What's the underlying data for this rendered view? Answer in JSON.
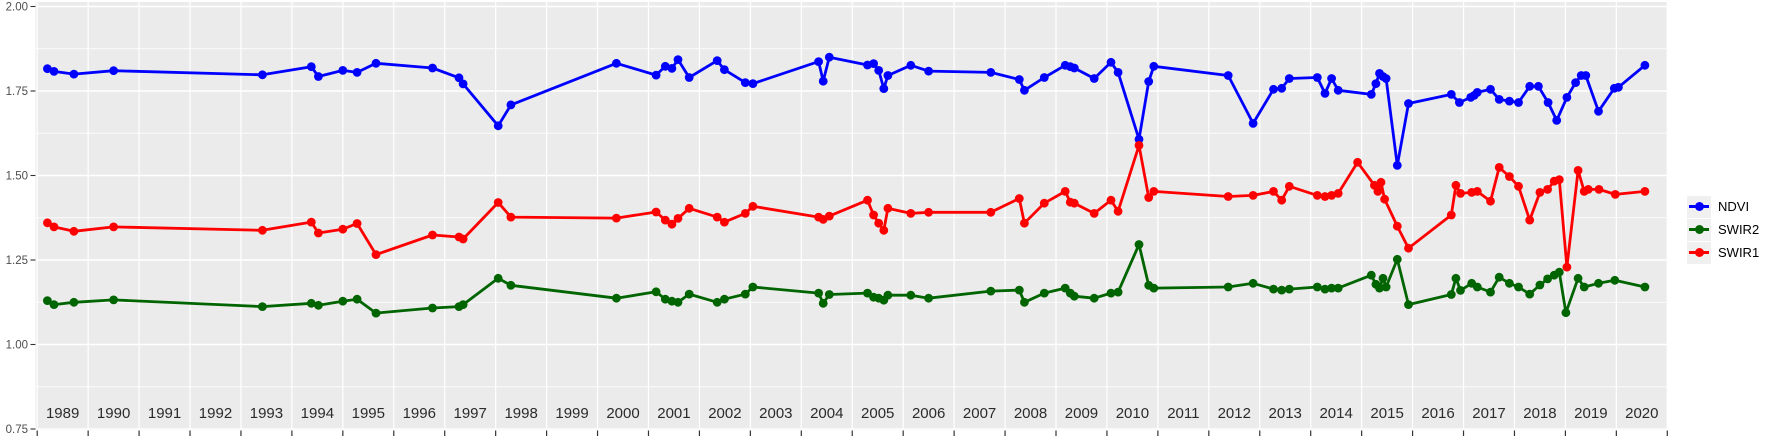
{
  "figure": {
    "background": "#ffffff",
    "panel_fill": "#ebebeb",
    "grid_color": "#ffffff",
    "tick_color": "#333333",
    "x_label_color": "#2b2b2b",
    "y_label_color": "#4d4d4d"
  },
  "legend": {
    "position": "right",
    "key_fill": "#f0f0f0",
    "items": [
      {
        "label": "NDVI",
        "color": "#0000ff"
      },
      {
        "label": "SWIR2",
        "color": "#006400"
      },
      {
        "label": "SWIR1",
        "color": "#ff0000"
      }
    ]
  },
  "chart_data": {
    "type": "line",
    "title": "",
    "xlabel": "",
    "ylabel": "",
    "grid": true,
    "legend_position": "right",
    "x_unit": "decimal year",
    "xlim": [
      1989,
      2021
    ],
    "ylim": [
      0.75,
      2.0
    ],
    "y_ticks": [
      0.75,
      1.0,
      1.25,
      1.5,
      1.75,
      2.0
    ],
    "y_tick_labels": [
      "0.75",
      "1.00",
      "1.25",
      "1.50",
      "1.75",
      "2.00"
    ],
    "y_minor_ticks": [
      0.875,
      1.125,
      1.375,
      1.625,
      1.875
    ],
    "x_tick_labels": [
      "1989",
      "1990",
      "1991",
      "1992",
      "1993",
      "1994",
      "1995",
      "1996",
      "1997",
      "1998",
      "1999",
      "2000",
      "2001",
      "2002",
      "2003",
      "2004",
      "2005",
      "2006",
      "2007",
      "2008",
      "2009",
      "2010",
      "2011",
      "2012",
      "2015",
      "2016",
      "2017",
      "2018",
      "2019",
      "2020"
    ],
    "x_tick_labels_full": [
      "1989",
      "1990",
      "1991",
      "1992",
      "1993",
      "1994",
      "1995",
      "1996",
      "1997",
      "1998",
      "1999",
      "2000",
      "2001",
      "2002",
      "2003",
      "2004",
      "2005",
      "2006",
      "2007",
      "2008",
      "2009",
      "2010",
      "2011",
      "2012",
      "2013",
      "2014",
      "2015",
      "2016",
      "2017",
      "2018",
      "2019",
      "2020"
    ],
    "series": [
      {
        "name": "NDVI",
        "color": "#0000ff",
        "points": [
          [
            1989.2,
            1.816
          ],
          [
            1989.33,
            1.808
          ],
          [
            1989.72,
            1.8
          ],
          [
            1990.5,
            1.81
          ],
          [
            1993.42,
            1.798
          ],
          [
            1994.38,
            1.822
          ],
          [
            1994.52,
            1.793
          ],
          [
            1995.0,
            1.811
          ],
          [
            1995.28,
            1.805
          ],
          [
            1995.65,
            1.832
          ],
          [
            1996.76,
            1.818
          ],
          [
            1997.28,
            1.789
          ],
          [
            1997.36,
            1.771
          ],
          [
            1998.05,
            1.647
          ],
          [
            1998.3,
            1.709
          ],
          [
            2000.37,
            1.832
          ],
          [
            2001.15,
            1.797
          ],
          [
            2001.33,
            1.823
          ],
          [
            2001.46,
            1.817
          ],
          [
            2001.58,
            1.843
          ],
          [
            2001.8,
            1.79
          ],
          [
            2002.35,
            1.84
          ],
          [
            2002.49,
            1.813
          ],
          [
            2002.9,
            1.775
          ],
          [
            2003.05,
            1.772
          ],
          [
            2004.34,
            1.837
          ],
          [
            2004.43,
            1.779
          ],
          [
            2004.55,
            1.85
          ],
          [
            2005.3,
            1.827
          ],
          [
            2005.42,
            1.831
          ],
          [
            2005.52,
            1.811
          ],
          [
            2005.62,
            1.757
          ],
          [
            2005.7,
            1.796
          ],
          [
            2006.15,
            1.826
          ],
          [
            2006.5,
            1.809
          ],
          [
            2007.72,
            1.805
          ],
          [
            2008.28,
            1.784
          ],
          [
            2008.38,
            1.752
          ],
          [
            2008.77,
            1.79
          ],
          [
            2009.18,
            1.826
          ],
          [
            2009.28,
            1.822
          ],
          [
            2009.36,
            1.818
          ],
          [
            2009.75,
            1.787
          ],
          [
            2010.08,
            1.835
          ],
          [
            2010.22,
            1.805
          ],
          [
            2010.63,
            1.607
          ],
          [
            2010.82,
            1.778
          ],
          [
            2010.92,
            1.823
          ],
          [
            2012.38,
            1.796
          ],
          [
            2012.87,
            1.654
          ],
          [
            2013.27,
            1.755
          ],
          [
            2013.43,
            1.758
          ],
          [
            2013.58,
            1.787
          ],
          [
            2014.13,
            1.79
          ],
          [
            2014.28,
            1.743
          ],
          [
            2014.41,
            1.787
          ],
          [
            2014.54,
            1.752
          ],
          [
            2015.19,
            1.74
          ],
          [
            2015.28,
            1.772
          ],
          [
            2015.35,
            1.802
          ],
          [
            2015.42,
            1.793
          ],
          [
            2015.48,
            1.787
          ],
          [
            2015.7,
            1.53
          ],
          [
            2015.92,
            1.713
          ],
          [
            2016.76,
            1.74
          ],
          [
            2016.92,
            1.716
          ],
          [
            2017.14,
            1.731
          ],
          [
            2017.21,
            1.737
          ],
          [
            2017.27,
            1.746
          ],
          [
            2017.53,
            1.755
          ],
          [
            2017.7,
            1.725
          ],
          [
            2017.9,
            1.72
          ],
          [
            2018.08,
            1.716
          ],
          [
            2018.3,
            1.764
          ],
          [
            2018.47,
            1.764
          ],
          [
            2018.66,
            1.716
          ],
          [
            2018.83,
            1.663
          ],
          [
            2019.03,
            1.731
          ],
          [
            2019.2,
            1.775
          ],
          [
            2019.31,
            1.796
          ],
          [
            2019.4,
            1.796
          ],
          [
            2019.65,
            1.69
          ],
          [
            2019.96,
            1.758
          ],
          [
            2020.04,
            1.761
          ],
          [
            2020.56,
            1.826
          ]
        ]
      },
      {
        "name": "SWIR2",
        "color": "#006400",
        "points": [
          [
            1989.2,
            1.13
          ],
          [
            1989.33,
            1.118
          ],
          [
            1989.72,
            1.125
          ],
          [
            1990.5,
            1.132
          ],
          [
            1993.42,
            1.112
          ],
          [
            1994.38,
            1.122
          ],
          [
            1994.52,
            1.116
          ],
          [
            1995.0,
            1.128
          ],
          [
            1995.28,
            1.134
          ],
          [
            1995.65,
            1.093
          ],
          [
            1996.76,
            1.108
          ],
          [
            1997.28,
            1.112
          ],
          [
            1997.36,
            1.118
          ],
          [
            1998.05,
            1.196
          ],
          [
            1998.3,
            1.175
          ],
          [
            2000.37,
            1.137
          ],
          [
            2001.15,
            1.156
          ],
          [
            2001.33,
            1.134
          ],
          [
            2001.46,
            1.128
          ],
          [
            2001.58,
            1.125
          ],
          [
            2001.8,
            1.149
          ],
          [
            2002.35,
            1.125
          ],
          [
            2002.49,
            1.134
          ],
          [
            2002.9,
            1.149
          ],
          [
            2003.05,
            1.17
          ],
          [
            2004.34,
            1.152
          ],
          [
            2004.43,
            1.122
          ],
          [
            2004.55,
            1.148
          ],
          [
            2005.3,
            1.152
          ],
          [
            2005.42,
            1.14
          ],
          [
            2005.52,
            1.137
          ],
          [
            2005.62,
            1.131
          ],
          [
            2005.7,
            1.146
          ],
          [
            2006.15,
            1.146
          ],
          [
            2006.5,
            1.137
          ],
          [
            2007.72,
            1.158
          ],
          [
            2008.28,
            1.161
          ],
          [
            2008.38,
            1.125
          ],
          [
            2008.77,
            1.152
          ],
          [
            2009.18,
            1.167
          ],
          [
            2009.28,
            1.152
          ],
          [
            2009.36,
            1.143
          ],
          [
            2009.75,
            1.137
          ],
          [
            2010.08,
            1.152
          ],
          [
            2010.22,
            1.155
          ],
          [
            2010.63,
            1.296
          ],
          [
            2010.82,
            1.175
          ],
          [
            2010.92,
            1.167
          ],
          [
            2012.38,
            1.17
          ],
          [
            2012.87,
            1.181
          ],
          [
            2013.27,
            1.164
          ],
          [
            2013.43,
            1.161
          ],
          [
            2013.58,
            1.164
          ],
          [
            2014.13,
            1.17
          ],
          [
            2014.28,
            1.164
          ],
          [
            2014.41,
            1.167
          ],
          [
            2014.54,
            1.167
          ],
          [
            2015.19,
            1.205
          ],
          [
            2015.28,
            1.178
          ],
          [
            2015.35,
            1.167
          ],
          [
            2015.42,
            1.196
          ],
          [
            2015.48,
            1.17
          ],
          [
            2015.7,
            1.252
          ],
          [
            2015.92,
            1.118
          ],
          [
            2016.76,
            1.148
          ],
          [
            2016.85,
            1.196
          ],
          [
            2016.94,
            1.16
          ],
          [
            2017.16,
            1.181
          ],
          [
            2017.27,
            1.17
          ],
          [
            2017.53,
            1.155
          ],
          [
            2017.7,
            1.199
          ],
          [
            2017.9,
            1.181
          ],
          [
            2018.08,
            1.17
          ],
          [
            2018.3,
            1.149
          ],
          [
            2018.5,
            1.176
          ],
          [
            2018.65,
            1.194
          ],
          [
            2018.78,
            1.205
          ],
          [
            2018.88,
            1.214
          ],
          [
            2019.01,
            1.094
          ],
          [
            2019.25,
            1.196
          ],
          [
            2019.37,
            1.17
          ],
          [
            2019.65,
            1.181
          ],
          [
            2019.97,
            1.19
          ],
          [
            2020.56,
            1.17
          ]
        ]
      },
      {
        "name": "SWIR1",
        "color": "#ff0000",
        "points": [
          [
            1989.2,
            1.36
          ],
          [
            1989.33,
            1.348
          ],
          [
            1989.72,
            1.335
          ],
          [
            1990.5,
            1.348
          ],
          [
            1993.42,
            1.338
          ],
          [
            1994.38,
            1.362
          ],
          [
            1994.52,
            1.33
          ],
          [
            1995.0,
            1.341
          ],
          [
            1995.28,
            1.358
          ],
          [
            1995.65,
            1.266
          ],
          [
            1996.76,
            1.324
          ],
          [
            1997.28,
            1.318
          ],
          [
            1997.36,
            1.312
          ],
          [
            1998.05,
            1.42
          ],
          [
            1998.3,
            1.377
          ],
          [
            2000.37,
            1.374
          ],
          [
            2001.15,
            1.392
          ],
          [
            2001.33,
            1.368
          ],
          [
            2001.46,
            1.356
          ],
          [
            2001.58,
            1.373
          ],
          [
            2001.8,
            1.403
          ],
          [
            2002.35,
            1.377
          ],
          [
            2002.49,
            1.362
          ],
          [
            2002.9,
            1.388
          ],
          [
            2003.05,
            1.409
          ],
          [
            2004.34,
            1.377
          ],
          [
            2004.43,
            1.37
          ],
          [
            2004.55,
            1.38
          ],
          [
            2005.3,
            1.427
          ],
          [
            2005.42,
            1.383
          ],
          [
            2005.52,
            1.359
          ],
          [
            2005.62,
            1.338
          ],
          [
            2005.7,
            1.403
          ],
          [
            2006.15,
            1.388
          ],
          [
            2006.5,
            1.391
          ],
          [
            2007.72,
            1.391
          ],
          [
            2008.28,
            1.432
          ],
          [
            2008.38,
            1.359
          ],
          [
            2008.77,
            1.418
          ],
          [
            2009.18,
            1.453
          ],
          [
            2009.28,
            1.421
          ],
          [
            2009.36,
            1.418
          ],
          [
            2009.75,
            1.388
          ],
          [
            2010.08,
            1.427
          ],
          [
            2010.22,
            1.394
          ],
          [
            2010.63,
            1.589
          ],
          [
            2010.82,
            1.435
          ],
          [
            2010.92,
            1.453
          ],
          [
            2012.38,
            1.438
          ],
          [
            2012.87,
            1.441
          ],
          [
            2013.27,
            1.453
          ],
          [
            2013.43,
            1.427
          ],
          [
            2013.58,
            1.468
          ],
          [
            2014.13,
            1.441
          ],
          [
            2014.28,
            1.438
          ],
          [
            2014.41,
            1.441
          ],
          [
            2014.54,
            1.447
          ],
          [
            2014.92,
            1.539
          ],
          [
            2015.25,
            1.471
          ],
          [
            2015.32,
            1.453
          ],
          [
            2015.38,
            1.48
          ],
          [
            2015.45,
            1.43
          ],
          [
            2015.7,
            1.35
          ],
          [
            2015.92,
            1.285
          ],
          [
            2016.76,
            1.383
          ],
          [
            2016.85,
            1.471
          ],
          [
            2016.94,
            1.447
          ],
          [
            2017.16,
            1.45
          ],
          [
            2017.27,
            1.453
          ],
          [
            2017.53,
            1.424
          ],
          [
            2017.7,
            1.524
          ],
          [
            2017.9,
            1.497
          ],
          [
            2018.08,
            1.468
          ],
          [
            2018.3,
            1.368
          ],
          [
            2018.5,
            1.45
          ],
          [
            2018.65,
            1.459
          ],
          [
            2018.78,
            1.483
          ],
          [
            2018.88,
            1.488
          ],
          [
            2019.03,
            1.229
          ],
          [
            2019.25,
            1.515
          ],
          [
            2019.37,
            1.453
          ],
          [
            2019.45,
            1.459
          ],
          [
            2019.66,
            1.459
          ],
          [
            2019.98,
            1.444
          ],
          [
            2020.56,
            1.453
          ]
        ]
      }
    ]
  }
}
